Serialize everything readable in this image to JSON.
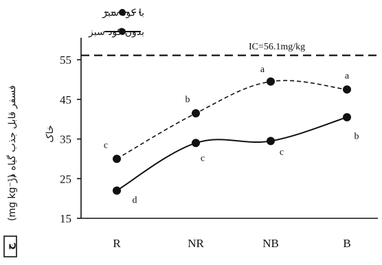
{
  "chart_data": {
    "type": "line",
    "categories": [
      "R",
      "NR",
      "NB",
      "B"
    ],
    "series": [
      {
        "name": "با کود سبز",
        "style": "dashed",
        "values": [
          30,
          41.5,
          49.5,
          47.5
        ],
        "letters": [
          "c",
          "b",
          "a",
          "a"
        ]
      },
      {
        "name": "بدون کود سبز",
        "style": "solid",
        "values": [
          22,
          34,
          34.5,
          40.5
        ],
        "letters": [
          "d",
          "c",
          "c",
          "b"
        ]
      }
    ],
    "yticks": [
      15,
      25,
      35,
      45,
      55
    ],
    "ylim": [
      15,
      57
    ],
    "reference_line": {
      "value": 56.1,
      "label": "IC=56.1mg/kg"
    },
    "ylabel_line1": "فسفر قابل جذب گیاه در",
    "ylabel_line2": "خاک",
    "ylabel_line3": "(mg kg⁻¹)",
    "legend_position": "top-center",
    "panel_label": "ج",
    "grid": false
  }
}
